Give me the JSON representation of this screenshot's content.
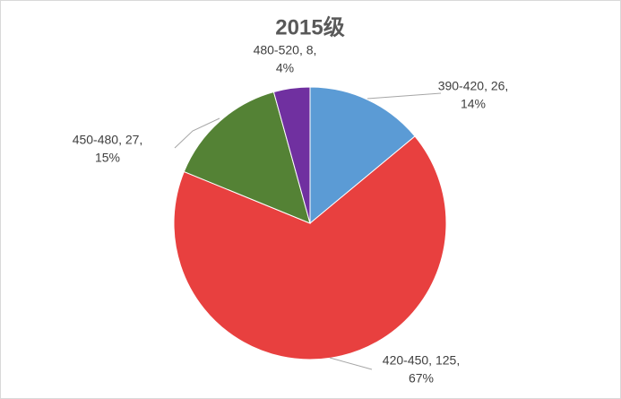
{
  "chart_data": {
    "type": "pie",
    "title": "2015级",
    "categories": [
      "390-420",
      "420-450",
      "450-480",
      "480-520"
    ],
    "values": [
      26,
      125,
      27,
      8
    ],
    "value_labels": [
      [
        "390-420, 26,",
        "14%"
      ],
      [
        "420-450, 125,",
        "67%"
      ],
      [
        "450-480, 27,",
        "15%"
      ],
      [
        "480-520, 8,",
        "4%"
      ]
    ],
    "colors": [
      "#5b9bd5",
      "#e8403f",
      "#548235",
      "#7030a0"
    ]
  }
}
